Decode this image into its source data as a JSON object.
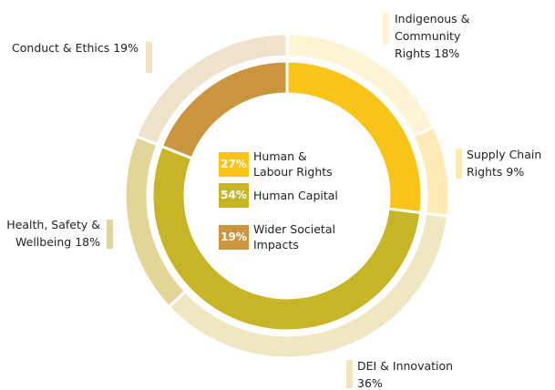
{
  "chart_data": {
    "type": "nested-donut",
    "rings": [
      {
        "categories": [
          "Human & Labour Rights",
          "Human Capital",
          "Wider Societal Impacts"
        ],
        "values": [
          27,
          54,
          19
        ],
        "value_labels": [
          "27%",
          "54%",
          "19%"
        ],
        "colors": [
          "#f7c417",
          "#c8b527",
          "#c9963f"
        ]
      },
      {
        "categories": [
          "Indigenous & Community Rights",
          "Supply Chain Rights",
          "DEI & Innovation",
          "Health, Safety & Wellbeing",
          "Conduct & Ethics"
        ],
        "values": [
          18,
          9,
          36,
          18,
          19
        ],
        "value_labels": [
          "18%",
          "9%",
          "36%",
          "18%",
          "19%"
        ],
        "colors": [
          "#fdf4d5",
          "#fdeab5",
          "#efe6c2",
          "#e2d597",
          "#efe2cb"
        ]
      }
    ]
  }
}
